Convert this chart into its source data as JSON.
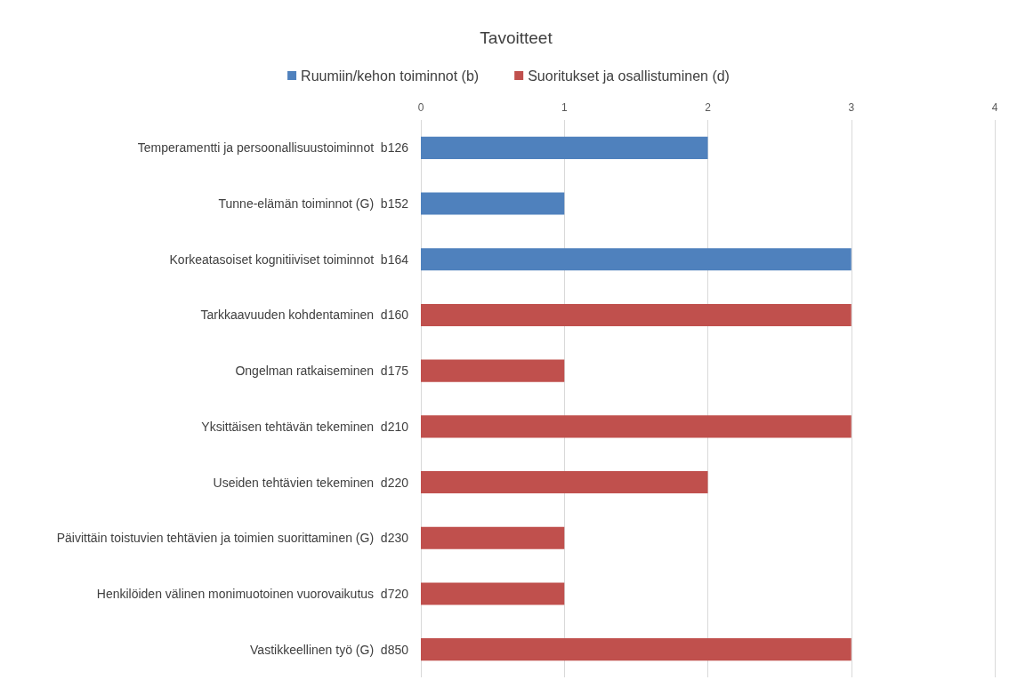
{
  "chart_data": {
    "type": "bar",
    "orientation": "horizontal",
    "title": "Tavoitteet",
    "categories": [
      "Temperamentti ja persoonallisuustoiminnot  b126",
      "Tunne-elämän toiminnot (G)  b152",
      "Korkeatasoiset kognitiiviset toiminnot  b164",
      "Tarkkaavuuden kohdentaminen  d160",
      "Ongelman ratkaiseminen  d175",
      "Yksittäisen tehtävän tekeminen  d210",
      "Useiden tehtävien tekeminen  d220",
      "Päivittäin toistuvien tehtävien ja toimien suorittaminen (G)  d230",
      "Henkilöiden välinen monimuotoinen vuorovaikutus  d720",
      "Vastikkeellinen työ (G)  d850"
    ],
    "series": [
      {
        "name": "Ruumiin/kehon toiminnot (b)",
        "color": "#4f81bd",
        "values": [
          2,
          1,
          3,
          null,
          null,
          null,
          null,
          null,
          null,
          null
        ]
      },
      {
        "name": "Suoritukset ja osallistuminen (d)",
        "color": "#c0504d",
        "values": [
          null,
          null,
          null,
          3,
          1,
          3,
          2,
          1,
          1,
          3
        ]
      }
    ],
    "xlim": [
      0,
      4
    ],
    "xticks": [
      0,
      1,
      2,
      3,
      4
    ],
    "grid": "x",
    "legend": "top"
  }
}
